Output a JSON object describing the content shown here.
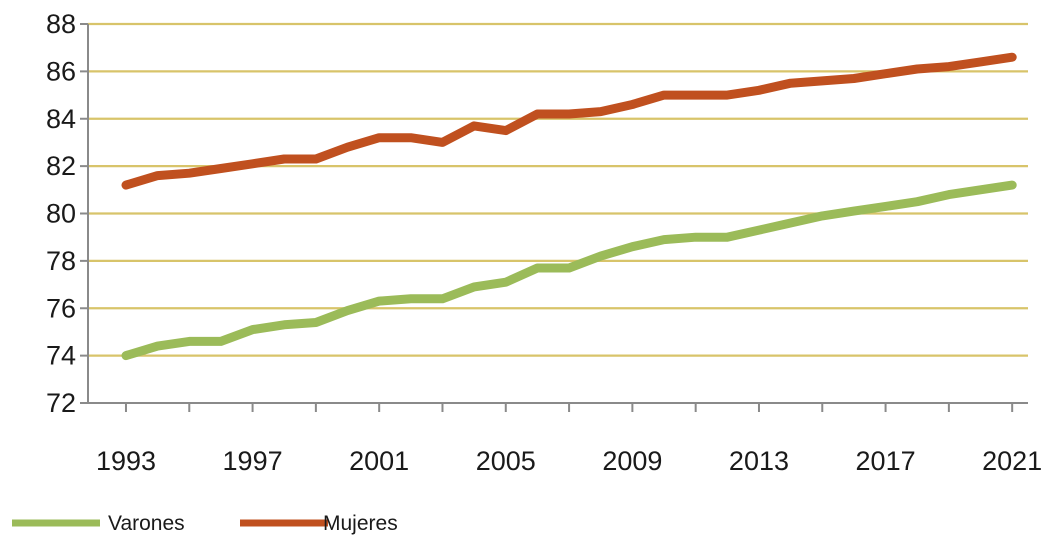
{
  "chart_data": {
    "type": "line",
    "title": "",
    "xlabel": "",
    "ylabel": "",
    "x": [
      1993,
      1994,
      1995,
      1996,
      1997,
      1998,
      1999,
      2000,
      2001,
      2002,
      2003,
      2004,
      2005,
      2006,
      2007,
      2008,
      2009,
      2010,
      2011,
      2012,
      2013,
      2014,
      2015,
      2016,
      2017,
      2018,
      2019,
      2020,
      2021
    ],
    "xticks": [
      1993,
      1997,
      2001,
      2005,
      2009,
      2013,
      2017,
      2021
    ],
    "xlim": [
      1991.8,
      2021.5
    ],
    "ylim": [
      72,
      88
    ],
    "yticks": [
      72,
      74,
      76,
      78,
      80,
      82,
      84,
      86,
      88
    ],
    "grid": "horizontal",
    "legend_position": "bottom-left",
    "series": [
      {
        "name": "Varones",
        "color": "#9bbb59",
        "values": [
          74.0,
          74.4,
          74.6,
          74.6,
          75.1,
          75.3,
          75.4,
          75.9,
          76.3,
          76.4,
          76.4,
          76.9,
          77.1,
          77.7,
          77.7,
          78.2,
          78.6,
          78.9,
          79.0,
          79.0,
          79.3,
          79.6,
          79.9,
          80.1,
          80.3,
          80.5,
          80.8,
          81.0,
          81.2
        ]
      },
      {
        "name": "Mujeres",
        "color": "#c0501f",
        "values": [
          81.2,
          81.6,
          81.7,
          81.9,
          82.1,
          82.3,
          82.3,
          82.8,
          83.2,
          83.2,
          83.0,
          83.7,
          83.5,
          84.2,
          84.2,
          84.3,
          84.6,
          85.0,
          85.0,
          85.0,
          85.2,
          85.5,
          85.6,
          85.7,
          85.9,
          86.1,
          86.2,
          86.4,
          86.6
        ]
      }
    ]
  }
}
